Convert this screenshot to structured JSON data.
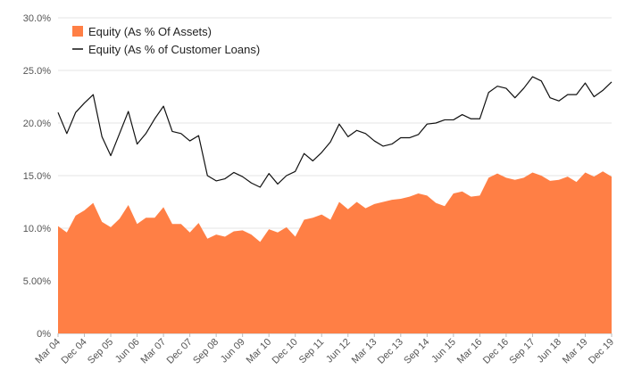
{
  "chart_data": {
    "type": "area",
    "title": "",
    "xlabel": "",
    "ylabel": "",
    "ylim": [
      0,
      30
    ],
    "yticks": [
      0,
      5,
      10,
      15,
      20,
      25,
      30
    ],
    "ytick_labels": [
      "0%",
      "5.00%",
      "10.0%",
      "15.0%",
      "20.0%",
      "25.0%",
      "30.0%"
    ],
    "grid": "horizontal",
    "legend_position": "top-left",
    "x": [
      "Mar 04",
      "Jun 04",
      "Sep 04",
      "Dec 04",
      "Mar 05",
      "Jun 05",
      "Sep 05",
      "Dec 05",
      "Mar 06",
      "Jun 06",
      "Sep 06",
      "Dec 06",
      "Mar 07",
      "Jun 07",
      "Sep 07",
      "Dec 07",
      "Mar 08",
      "Jun 08",
      "Sep 08",
      "Dec 08",
      "Mar 09",
      "Jun 09",
      "Sep 09",
      "Dec 09",
      "Mar 10",
      "Jun 10",
      "Sep 10",
      "Dec 10",
      "Mar 11",
      "Jun 11",
      "Sep 11",
      "Dec 11",
      "Mar 12",
      "Jun 12",
      "Sep 12",
      "Dec 12",
      "Mar 13",
      "Jun 13",
      "Sep 13",
      "Dec 13",
      "Mar 14",
      "Jun 14",
      "Sep 14",
      "Dec 14",
      "Mar 15",
      "Jun 15",
      "Sep 15",
      "Dec 15",
      "Mar 16",
      "Jun 16",
      "Sep 16",
      "Dec 16",
      "Mar 17",
      "Jun 17",
      "Sep 17",
      "Dec 17",
      "Mar 18",
      "Jun 18",
      "Sep 18",
      "Dec 18",
      "Mar 19",
      "Jun 19",
      "Sep 19",
      "Dec 19"
    ],
    "xtick_labels": [
      "Mar 04",
      "Dec 04",
      "Sep 05",
      "Jun 06",
      "Mar 07",
      "Dec 07",
      "Sep 08",
      "Jun 09",
      "Mar 10",
      "Dec 10",
      "Sep 11",
      "Jun 12",
      "Mar 13",
      "Dec 13",
      "Sep 14",
      "Jun 15",
      "Mar 16",
      "Dec 16",
      "Sep 17",
      "Jun 18",
      "Mar 19",
      "Dec 19"
    ],
    "series": [
      {
        "name": "Equity (As % Of Assets)",
        "kind": "area",
        "color": "#ff7f45",
        "values": [
          10.2,
          9.6,
          11.2,
          11.7,
          12.4,
          10.6,
          10.1,
          10.9,
          12.2,
          10.4,
          11.0,
          11.0,
          12.0,
          10.4,
          10.4,
          9.6,
          10.5,
          9.0,
          9.4,
          9.2,
          9.7,
          9.8,
          9.4,
          8.7,
          9.9,
          9.6,
          10.1,
          9.2,
          10.8,
          11.0,
          11.3,
          10.8,
          12.5,
          11.8,
          12.5,
          11.9,
          12.3,
          12.5,
          12.7,
          12.8,
          13.0,
          13.3,
          13.1,
          12.4,
          12.1,
          13.3,
          13.5,
          13.0,
          13.1,
          14.8,
          15.2,
          14.8,
          14.6,
          14.8,
          15.3,
          15.0,
          14.5,
          14.6,
          14.9,
          14.4,
          15.3,
          14.9,
          15.4,
          14.9
        ]
      },
      {
        "name": "Equity (As % of Customer Loans)",
        "kind": "line",
        "color": "#111111",
        "values": [
          21.0,
          19.0,
          21.0,
          21.9,
          22.7,
          18.7,
          16.9,
          19.0,
          21.1,
          18.0,
          19.0,
          20.4,
          21.6,
          19.2,
          19.0,
          18.3,
          18.8,
          15.0,
          14.5,
          14.7,
          15.3,
          14.9,
          14.3,
          13.9,
          15.2,
          14.2,
          15.0,
          15.4,
          17.1,
          16.4,
          17.2,
          18.2,
          19.9,
          18.7,
          19.3,
          19.0,
          18.3,
          17.8,
          18.0,
          18.6,
          18.6,
          18.9,
          19.9,
          20.0,
          20.3,
          20.3,
          20.8,
          20.4,
          20.4,
          22.9,
          23.5,
          23.3,
          22.4,
          23.3,
          24.4,
          24.0,
          22.4,
          22.1,
          22.7,
          22.7,
          23.8,
          22.5,
          23.1,
          23.9
        ]
      }
    ]
  }
}
